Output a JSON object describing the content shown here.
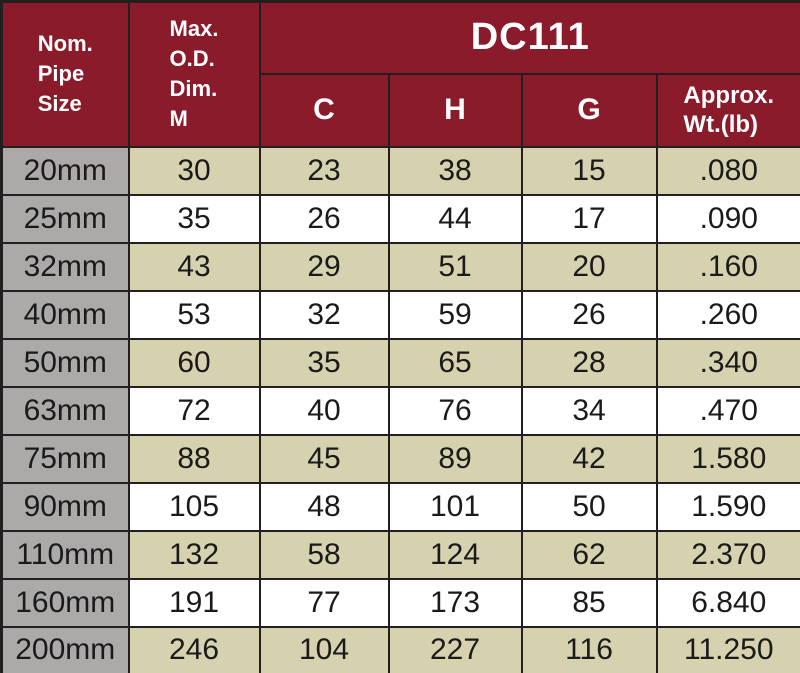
{
  "table": {
    "header": {
      "group": "DC111",
      "pipe_size": "Nom.\nPipe\nSize",
      "max_od": "Max.\nO.D.\nDim.\nM",
      "columns": [
        "C",
        "H",
        "G",
        "Approx.\nWt.(lb)"
      ]
    },
    "rows": [
      [
        "20mm",
        "30",
        "23",
        "38",
        "15",
        ".080"
      ],
      [
        "25mm",
        "35",
        "26",
        "44",
        "17",
        ".090"
      ],
      [
        "32mm",
        "43",
        "29",
        "51",
        "20",
        ".160"
      ],
      [
        "40mm",
        "53",
        "32",
        "59",
        "26",
        ".260"
      ],
      [
        "50mm",
        "60",
        "35",
        "65",
        "28",
        ".340"
      ],
      [
        "63mm",
        "72",
        "40",
        "76",
        "34",
        ".470"
      ],
      [
        "75mm",
        "88",
        "45",
        "89",
        "42",
        "1.580"
      ],
      [
        "90mm",
        "105",
        "48",
        "101",
        "50",
        "1.590"
      ],
      [
        "110mm",
        "132",
        "58",
        "124",
        "62",
        "2.370"
      ],
      [
        "160mm",
        "191",
        "77",
        "173",
        "85",
        "6.840"
      ],
      [
        "200mm",
        "246",
        "104",
        "227",
        "116",
        "11.250"
      ]
    ]
  },
  "colors": {
    "header_bg": "#8a1b2a",
    "header_text": "#ffffff",
    "row_label_bg": "#aca9a9",
    "row_alt_bg": "#d6d2b0",
    "row_bg": "#ffffff",
    "border": "#231f20",
    "body_text": "#1a1a1a"
  }
}
